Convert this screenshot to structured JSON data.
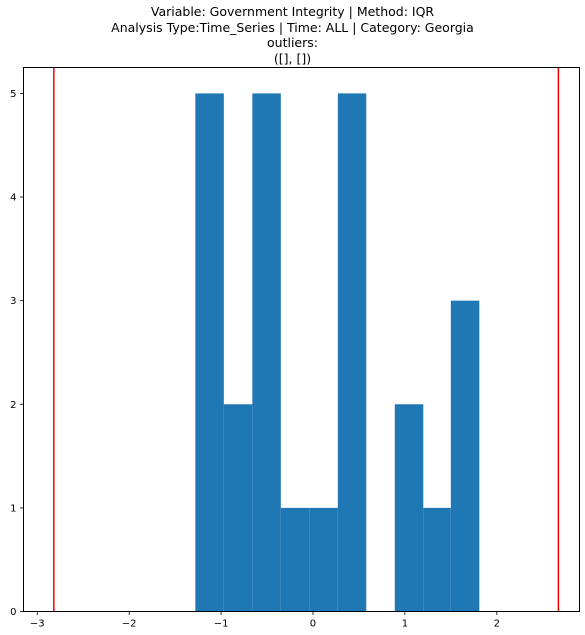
{
  "chart_data": {
    "type": "bar",
    "title_lines": [
      "Variable: Government Integrity | Method: IQR",
      "Analysis Type:Time_Series | Time: ALL | Category: Georgia",
      "outliers:",
      "([], [])"
    ],
    "xlabel": "",
    "ylabel": "",
    "xlim": [
      -3.15,
      2.9
    ],
    "ylim": [
      0,
      5.25
    ],
    "xticks": [
      -3,
      -2,
      -1,
      0,
      1,
      2
    ],
    "xtick_labels": [
      "−3",
      "−2",
      "−1",
      "0",
      "1",
      "2"
    ],
    "yticks": [
      0,
      1,
      2,
      3,
      4,
      5
    ],
    "ytick_labels": [
      "0",
      "1",
      "2",
      "3",
      "4",
      "5"
    ],
    "bars": [
      {
        "x0": -1.28,
        "x1": -0.97,
        "value": 5
      },
      {
        "x0": -0.97,
        "x1": -0.66,
        "value": 2
      },
      {
        "x0": -0.66,
        "x1": -0.35,
        "value": 5
      },
      {
        "x0": -0.35,
        "x1": -0.04,
        "value": 1
      },
      {
        "x0": -0.04,
        "x1": 0.27,
        "value": 1
      },
      {
        "x0": 0.27,
        "x1": 0.58,
        "value": 5
      },
      {
        "x0": 0.58,
        "x1": 0.89,
        "value": 0
      },
      {
        "x0": 0.89,
        "x1": 1.2,
        "value": 2
      },
      {
        "x0": 1.2,
        "x1": 1.5,
        "value": 1
      },
      {
        "x0": 1.5,
        "x1": 1.81,
        "value": 3
      }
    ],
    "bar_color": "#1f77b4",
    "threshold_lines": [
      -2.82,
      2.67
    ],
    "threshold_color": "#ff0000",
    "grid": false
  }
}
